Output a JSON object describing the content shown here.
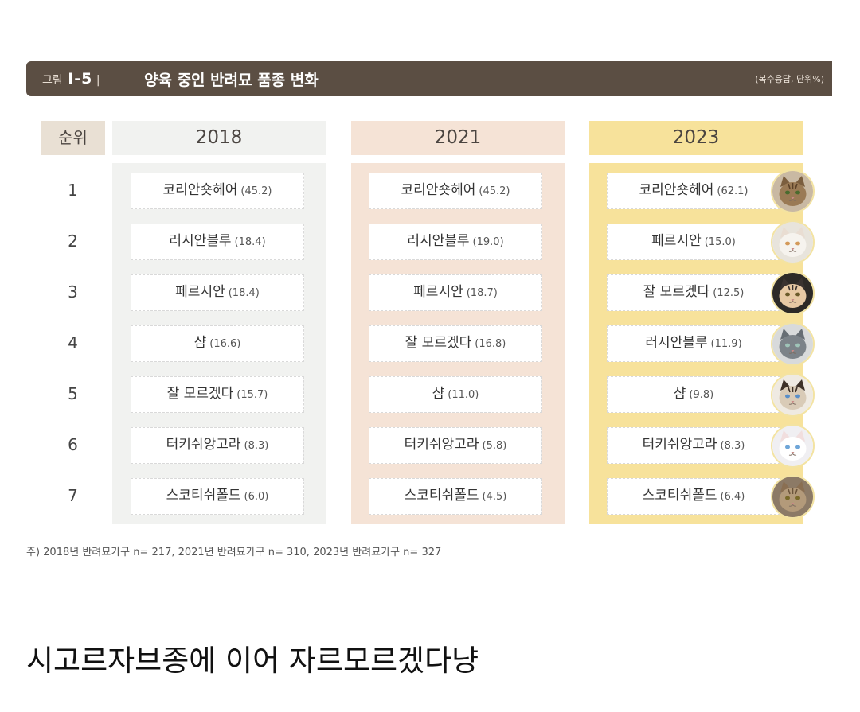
{
  "header": {
    "figure_label": "그림",
    "figure_number": "I-5",
    "title": "양육 중인 반려묘 품종 변화",
    "unit_note": "(복수응답, 단위%)"
  },
  "rank_header": "순위",
  "colors": {
    "header_bar": "#5b4e43",
    "col_2018": "#f1f2f0",
    "col_2021": "#f5e3d6",
    "col_2023": "#f7e29b",
    "rank_header": "#e9e0d4"
  },
  "chart_data": {
    "type": "table",
    "title": "양육 중인 반려묘 품종 변화",
    "columns": [
      "2018",
      "2021",
      "2023"
    ],
    "ranks": [
      "1",
      "2",
      "3",
      "4",
      "5",
      "6",
      "7"
    ],
    "rows": {
      "2018": [
        {
          "breed": "코리안숏헤어",
          "value": "(45.2)"
        },
        {
          "breed": "러시안블루",
          "value": "(18.4)"
        },
        {
          "breed": "페르시안",
          "value": "(18.4)"
        },
        {
          "breed": "샴",
          "value": "(16.6)"
        },
        {
          "breed": "잘 모르겠다",
          "value": "(15.7)"
        },
        {
          "breed": "터키쉬앙고라",
          "value": "(8.3)"
        },
        {
          "breed": "스코티쉬폴드",
          "value": "(6.0)"
        }
      ],
      "2021": [
        {
          "breed": "코리안숏헤어",
          "value": "(45.2)"
        },
        {
          "breed": "러시안블루",
          "value": "(19.0)"
        },
        {
          "breed": "페르시안",
          "value": "(18.7)"
        },
        {
          "breed": "잘 모르겠다",
          "value": "(16.8)"
        },
        {
          "breed": "샴",
          "value": "(11.0)"
        },
        {
          "breed": "터키쉬앙고라",
          "value": "(5.8)"
        },
        {
          "breed": "스코티쉬폴드",
          "value": "(4.5)"
        }
      ],
      "2023": [
        {
          "breed": "코리안숏헤어",
          "value": "(62.1)",
          "icon": "tabby-cat-icon"
        },
        {
          "breed": "페르시안",
          "value": "(15.0)",
          "icon": "white-persian-cat-icon"
        },
        {
          "breed": "잘 모르겠다",
          "value": "(12.5)",
          "icon": "mixed-cat-icon"
        },
        {
          "breed": "러시안블루",
          "value": "(11.9)",
          "icon": "gray-cat-icon"
        },
        {
          "breed": "샴",
          "value": "(9.8)",
          "icon": "siamese-cat-icon"
        },
        {
          "breed": "터키쉬앙고라",
          "value": "(8.3)",
          "icon": "white-angora-cat-icon"
        },
        {
          "breed": "스코티쉬폴드",
          "value": "(6.4)",
          "icon": "scottish-fold-cat-icon"
        }
      ]
    }
  },
  "footnote": "주) 2018년 반려묘가구 n= 217, 2021년 반려묘가구 n= 310, 2023년 반려묘가구 n= 327",
  "caption": "시고르자브종에 이어 자르모르겠다냥"
}
